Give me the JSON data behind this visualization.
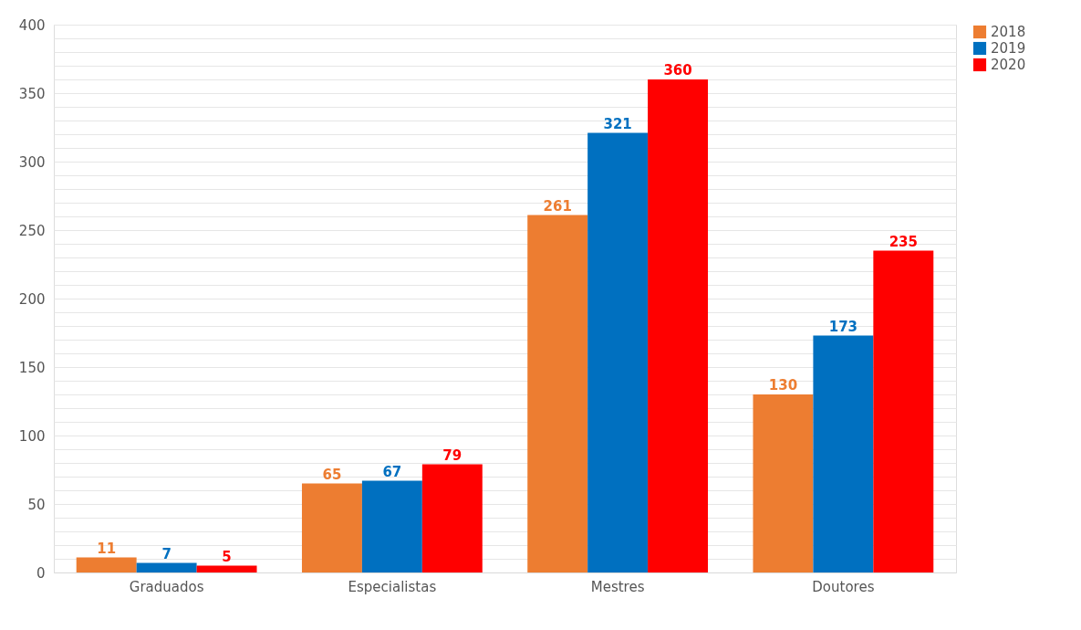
{
  "chart_data": {
    "type": "bar",
    "categories": [
      "Graduados",
      "Especialistas",
      "Mestres",
      "Doutores"
    ],
    "series": [
      {
        "name": "2018",
        "color": "#ed7d31",
        "values": [
          11,
          65,
          261,
          130
        ]
      },
      {
        "name": "2019",
        "color": "#0070c0",
        "values": [
          7,
          67,
          321,
          173
        ]
      },
      {
        "name": "2020",
        "color": "#ff0000",
        "values": [
          5,
          79,
          360,
          235
        ]
      }
    ],
    "ylim": [
      0,
      400
    ],
    "yticks": [
      0,
      {
        "value": 10,
        "label": null
      },
      {
        "value": 20,
        "label": null
      },
      {
        "value": 30,
        "label": null
      },
      {
        "value": 40,
        "label": null
      },
      50,
      {
        "value": 60,
        "label": null
      },
      {
        "value": 70,
        "label": null
      },
      {
        "value": 80,
        "label": null
      },
      {
        "value": 90,
        "label": null
      },
      100,
      {
        "value": 110,
        "label": null
      },
      {
        "value": 120,
        "label": null
      },
      {
        "value": 130,
        "label": null
      },
      {
        "value": 140,
        "label": null
      },
      150,
      {
        "value": 160,
        "label": null
      },
      {
        "value": 170,
        "label": null
      },
      {
        "value": 180,
        "label": null
      },
      {
        "value": 190,
        "label": null
      },
      200,
      {
        "value": 210,
        "label": null
      },
      {
        "value": 220,
        "label": null
      },
      {
        "value": 230,
        "label": null
      },
      {
        "value": 240,
        "label": null
      },
      250,
      {
        "value": 260,
        "label": null
      },
      {
        "value": 270,
        "label": null
      },
      {
        "value": 280,
        "label": null
      },
      {
        "value": 290,
        "label": null
      },
      300,
      {
        "value": 310,
        "label": null
      },
      {
        "value": 320,
        "label": null
      },
      {
        "value": 330,
        "label": null
      },
      {
        "value": 340,
        "label": null
      },
      350,
      {
        "value": 360,
        "label": null
      },
      {
        "value": 370,
        "label": null
      },
      {
        "value": 380,
        "label": null
      },
      {
        "value": 390,
        "label": null
      },
      400
    ],
    "grid": "y",
    "legend": "top right",
    "data_labels": true
  }
}
